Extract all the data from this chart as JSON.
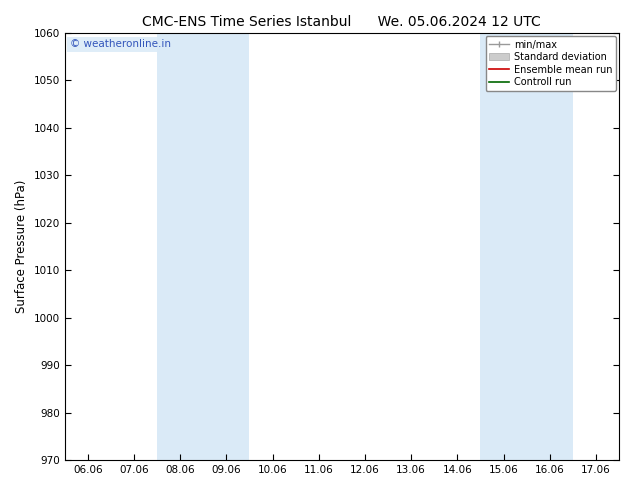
{
  "title_left": "CMC-ENS Time Series Istanbul",
  "title_right": "We. 05.06.2024 12 UTC",
  "ylabel": "Surface Pressure (hPa)",
  "xlabel": "",
  "ylim": [
    970,
    1060
  ],
  "yticks": [
    970,
    980,
    990,
    1000,
    1010,
    1020,
    1030,
    1040,
    1050,
    1060
  ],
  "xtick_labels": [
    "06.06",
    "07.06",
    "08.06",
    "09.06",
    "10.06",
    "11.06",
    "12.06",
    "13.06",
    "14.06",
    "15.06",
    "16.06",
    "17.06"
  ],
  "xtick_positions": [
    0,
    1,
    2,
    3,
    4,
    5,
    6,
    7,
    8,
    9,
    10,
    11
  ],
  "xlim": [
    -0.5,
    11.5
  ],
  "shade_regions": [
    {
      "x_start": 2.0,
      "x_end": 3.0,
      "color": "#daeaf7"
    },
    {
      "x_start": 9.0,
      "x_end": 10.0,
      "color": "#daeaf7"
    }
  ],
  "legend_labels": [
    "min/max",
    "Standard deviation",
    "Ensemble mean run",
    "Controll run"
  ],
  "watermark_text": "© weatheronline.in",
  "watermark_color": "#3355bb",
  "background_color": "#ffffff",
  "title_fontsize": 10,
  "tick_fontsize": 7.5,
  "ylabel_fontsize": 8.5
}
